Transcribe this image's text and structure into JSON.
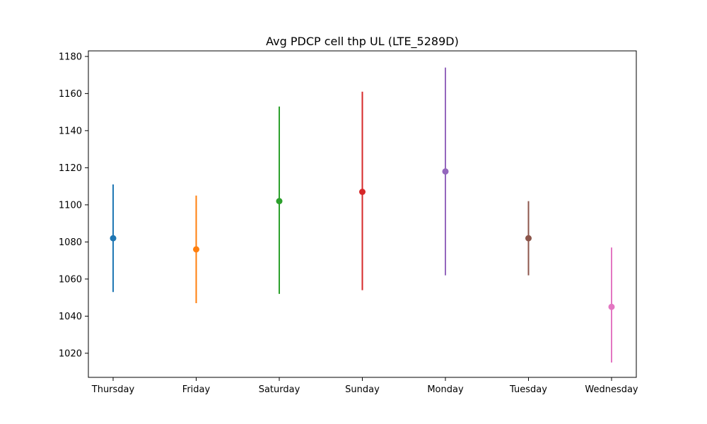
{
  "chart_data": {
    "type": "scatter",
    "title": "Avg PDCP cell thp UL (LTE_5289D)",
    "xlabel": "",
    "ylabel": "",
    "categories": [
      "Thursday",
      "Friday",
      "Saturday",
      "Sunday",
      "Monday",
      "Tuesday",
      "Wednesday"
    ],
    "points": [
      {
        "category": "Thursday",
        "value": 1082,
        "low": 1053,
        "high": 1111,
        "color": "#1f77b4"
      },
      {
        "category": "Friday",
        "value": 1076,
        "low": 1047,
        "high": 1105,
        "color": "#ff7f0e"
      },
      {
        "category": "Saturday",
        "value": 1102,
        "low": 1052,
        "high": 1153,
        "color": "#2ca02c"
      },
      {
        "category": "Sunday",
        "value": 1107,
        "low": 1054,
        "high": 1161,
        "color": "#d62728"
      },
      {
        "category": "Monday",
        "value": 1118,
        "low": 1062,
        "high": 1174,
        "color": "#9467bd"
      },
      {
        "category": "Tuesday",
        "value": 1082,
        "low": 1062,
        "high": 1102,
        "color": "#8c564b"
      },
      {
        "category": "Wednesday",
        "value": 1045,
        "low": 1015,
        "high": 1077,
        "color": "#e377c2"
      }
    ],
    "yticks": [
      1020,
      1040,
      1060,
      1080,
      1100,
      1120,
      1140,
      1160,
      1180
    ],
    "ylim": [
      1007,
      1183
    ],
    "grid": false,
    "legend": "none"
  }
}
